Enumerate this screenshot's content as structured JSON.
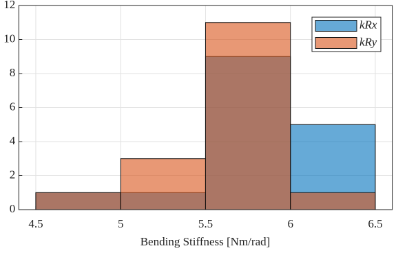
{
  "chart_data": {
    "type": "histogram",
    "x_label": "Bending Stiffness [Nm/rad]",
    "bins": [
      4.5,
      5,
      5.5,
      6,
      6.5
    ],
    "series": [
      {
        "name": "kRx",
        "color": "#0072BD",
        "values": [
          1,
          1,
          9,
          5
        ]
      },
      {
        "name": "kRy",
        "color": "#D95319",
        "values": [
          1,
          3,
          11,
          1
        ]
      }
    ],
    "xlim": [
      4.4,
      6.6
    ],
    "xticks": [
      4.5,
      5,
      5.5,
      6,
      6.5
    ],
    "ylim": [
      0,
      12
    ],
    "yticks": [
      0,
      2,
      4,
      6,
      8,
      10,
      12
    ],
    "grid": true,
    "legend": "upper right"
  }
}
